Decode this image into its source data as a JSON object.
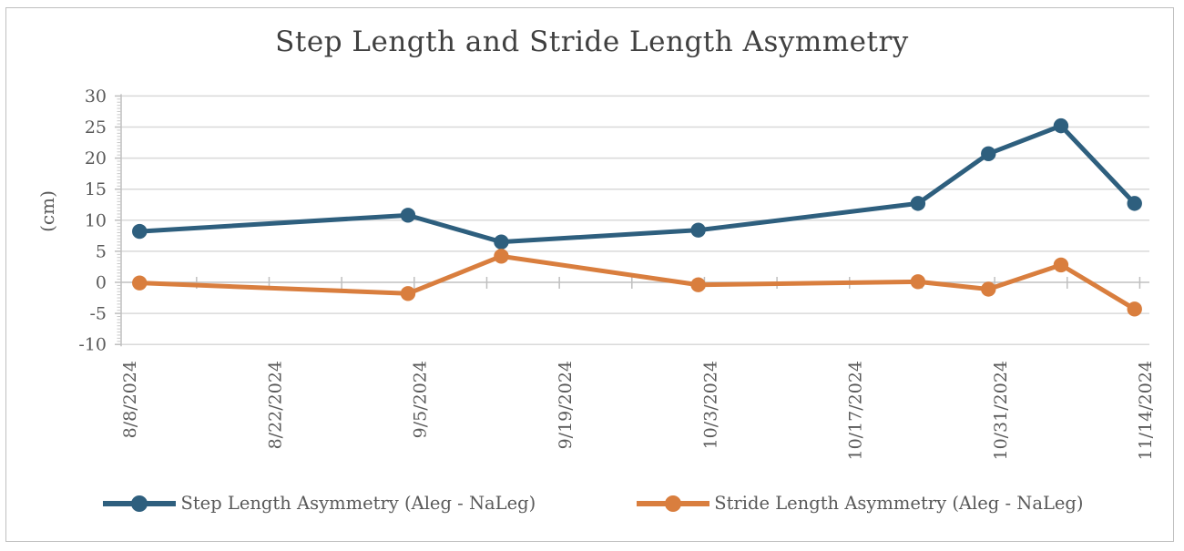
{
  "chart_data": {
    "type": "line",
    "title": "Step Length and Stride Length Asymmetry",
    "legend_position": "bottom",
    "y_axis": {
      "label": "(cm)",
      "min": -10,
      "max": 30,
      "major_unit": 5,
      "minor_unit": 0.5,
      "tick_labels": [
        "30",
        "25",
        "20",
        "15",
        "10",
        "5",
        "0",
        "-5",
        "-10"
      ],
      "grid": true
    },
    "x_axis": {
      "start_date": "8/8/2024",
      "end_date": "11/14/2024",
      "label_interval_days": 14,
      "tick_interval_days": 7,
      "ticks": [
        {
          "label": "8/8/2024",
          "day": 0
        },
        {
          "label": "8/22/2024",
          "day": 14
        },
        {
          "label": "9/5/2024",
          "day": 28
        },
        {
          "label": "9/19/2024",
          "day": 42
        },
        {
          "label": "10/3/2024",
          "day": 56
        },
        {
          "label": "10/17/2024",
          "day": 70
        },
        {
          "label": "10/31/2024",
          "day": 84
        },
        {
          "label": "11/14/2024",
          "day": 98
        }
      ]
    },
    "series": [
      {
        "name": "Step Length Asymmetry (Aleg - NaLeg)",
        "color": "#2E5F7E",
        "points": [
          {
            "date": "8/9/2024",
            "day": 0.9,
            "value": 8.2
          },
          {
            "date": "9/4/2024",
            "day": 26.8,
            "value": 10.8
          },
          {
            "date": "9/13/2024",
            "day": 35.8,
            "value": 6.5
          },
          {
            "date": "10/2/2024",
            "day": 54.8,
            "value": 8.4
          },
          {
            "date": "10/23/2024",
            "day": 76.0,
            "value": 12.7
          },
          {
            "date": "10/30/2024",
            "day": 82.8,
            "value": 20.7
          },
          {
            "date": "11/6/2024",
            "day": 89.8,
            "value": 25.2
          },
          {
            "date": "11/13/2024",
            "day": 96.9,
            "value": 12.7
          }
        ]
      },
      {
        "name": "Stride Length Asymmetry (Aleg - NaLeg)",
        "color": "#D97E3E",
        "points": [
          {
            "date": "8/9/2024",
            "day": 0.9,
            "value": -0.1
          },
          {
            "date": "9/4/2024",
            "day": 26.8,
            "value": -1.8
          },
          {
            "date": "9/13/2024",
            "day": 35.8,
            "value": 4.2
          },
          {
            "date": "10/2/2024",
            "day": 54.8,
            "value": -0.4
          },
          {
            "date": "10/23/2024",
            "day": 76.0,
            "value": 0.1
          },
          {
            "date": "10/30/2024",
            "day": 82.8,
            "value": -1.1
          },
          {
            "date": "11/6/2024",
            "day": 89.8,
            "value": 2.8
          },
          {
            "date": "11/13/2024",
            "day": 96.9,
            "value": -4.3
          }
        ]
      }
    ],
    "colors": {
      "grid": "#D9D9D9",
      "axis": "#BFBFBF",
      "tick_text": "#595959",
      "title_text": "#404040"
    }
  }
}
